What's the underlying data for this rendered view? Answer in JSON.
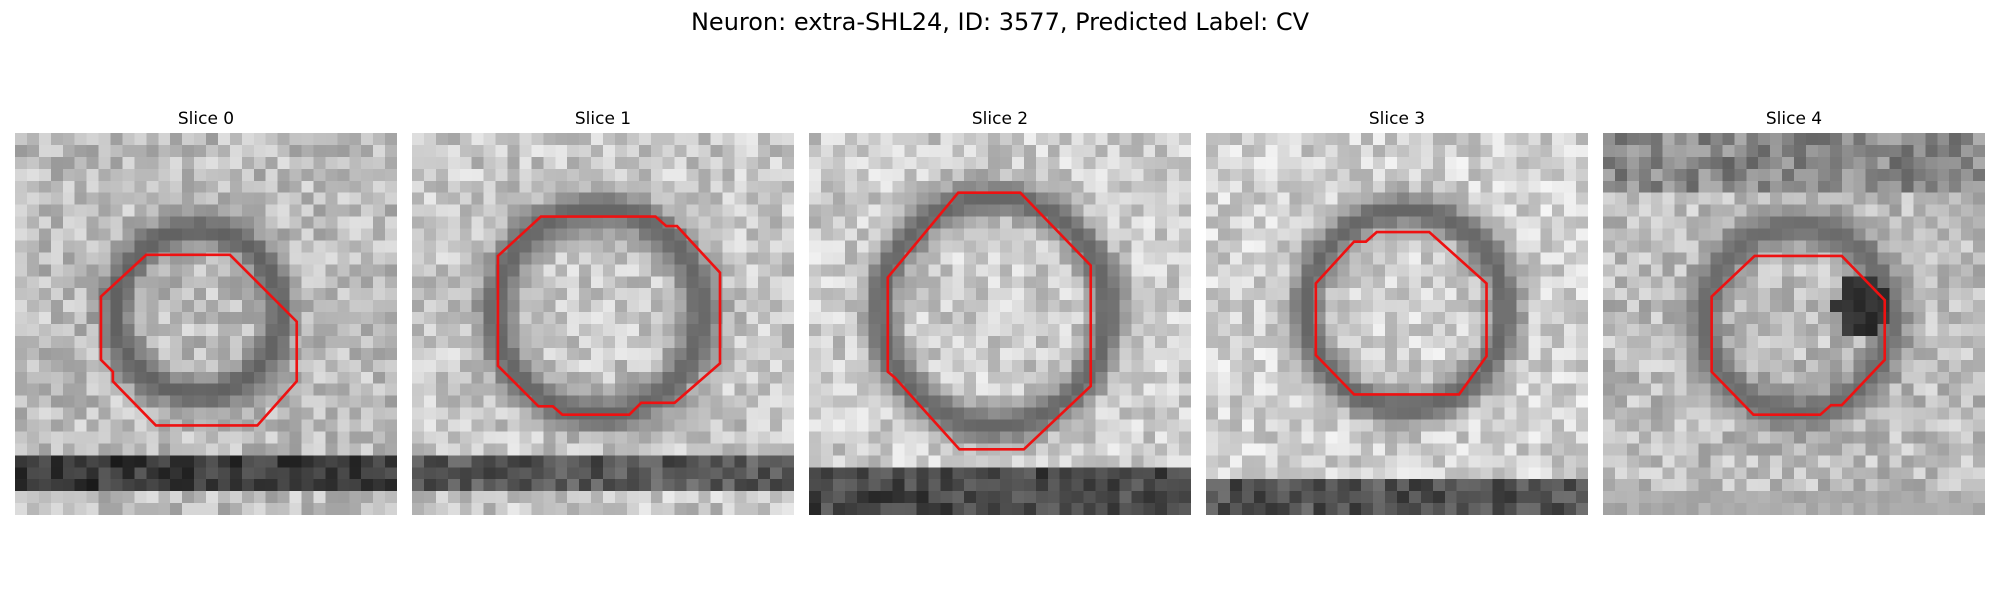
{
  "figure": {
    "title": "Neuron: extra-SHL24, ID: 3577, Predicted Label: CV"
  },
  "colors": {
    "contour": "#ee1111",
    "background": "#ffffff"
  },
  "panels": [
    {
      "title": "Slice 0",
      "image": "grayscale EM micrograph with dark ring around a light vesicle, dark band at bottom"
    },
    {
      "title": "Slice 1",
      "image": "grayscale EM micrograph with large dark ring and textured interior"
    },
    {
      "title": "Slice 2",
      "image": "grayscale EM micrograph with dark ring and inner branching structure, dark band at bottom"
    },
    {
      "title": "Slice 3",
      "image": "grayscale EM micrograph with dark ring around light center, dark band at bottom"
    },
    {
      "title": "Slice 4",
      "image": "grayscale EM micrograph with ring and very dark right-side region"
    }
  ]
}
